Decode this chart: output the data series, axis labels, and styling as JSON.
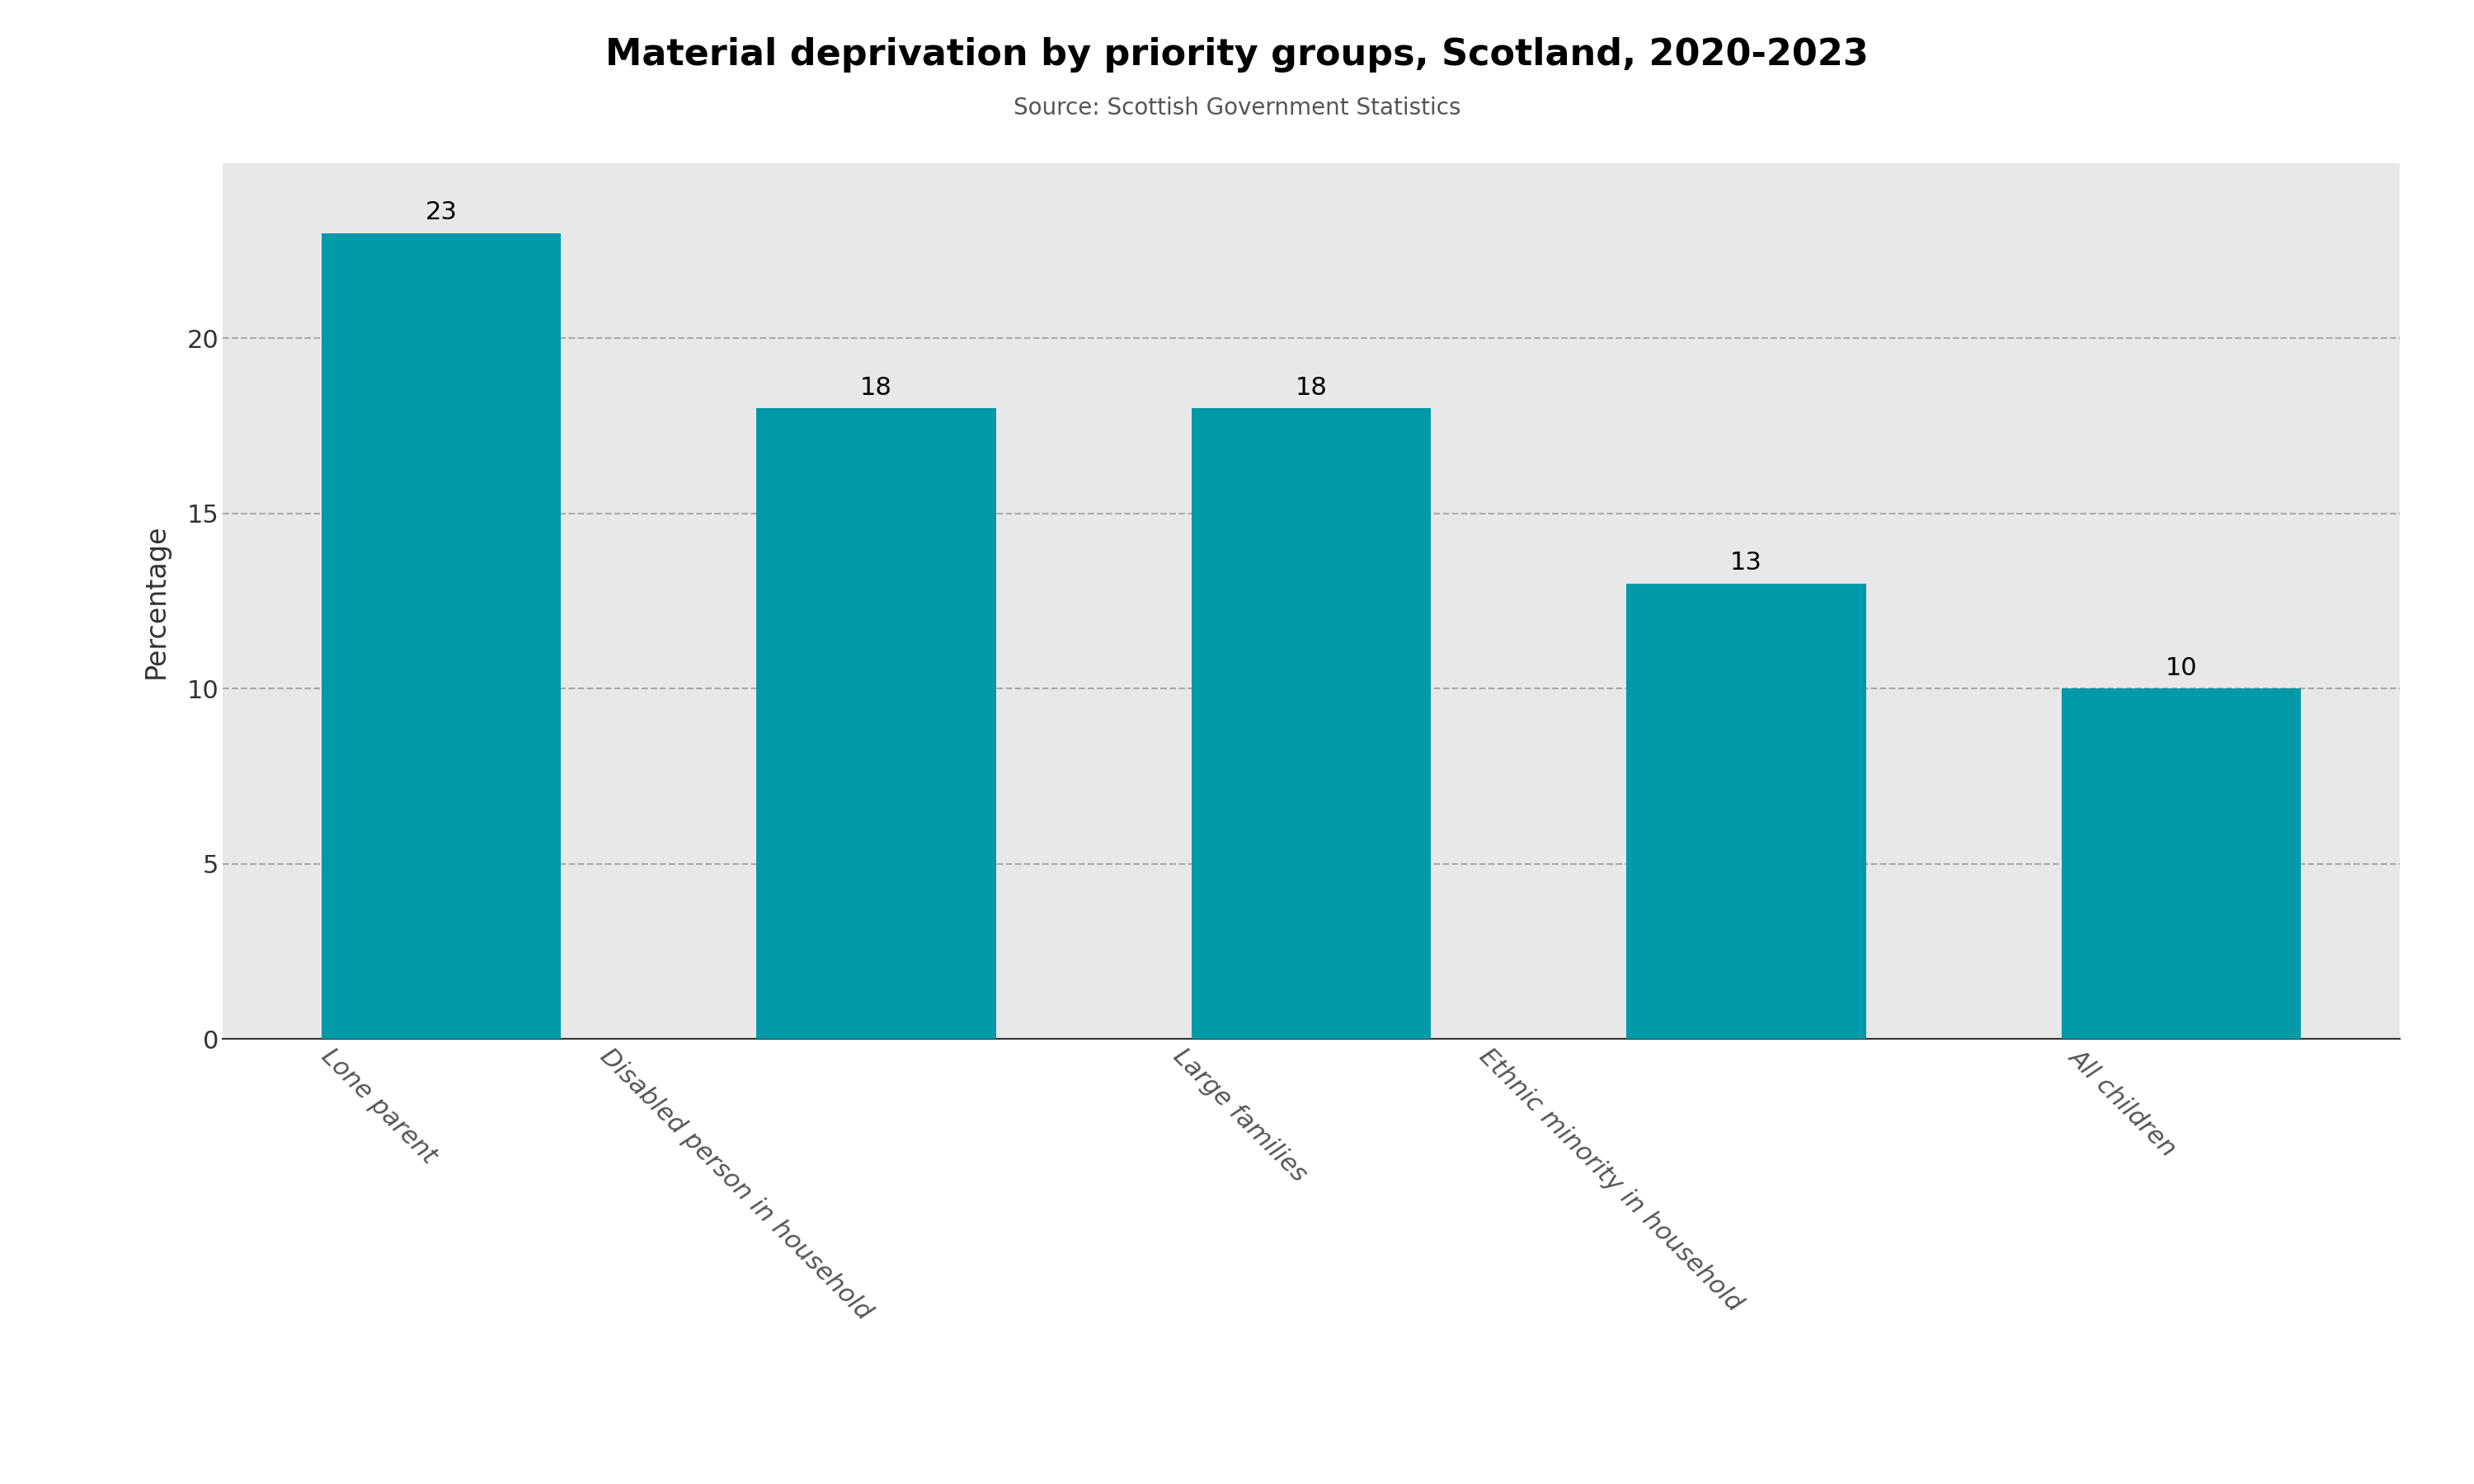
{
  "title": "Material deprivation by priority groups, Scotland, 2020-2023",
  "subtitle": "Source: Scottish Government Statistics",
  "categories": [
    "Lone parent",
    "Disabled person in household",
    "Large families",
    "Ethnic minority in household",
    "All children"
  ],
  "values": [
    23,
    18,
    18,
    13,
    10
  ],
  "bar_color": "#0099A8",
  "ylabel": "Percentage",
  "ylim": [
    0,
    25
  ],
  "yticks": [
    0,
    5,
    10,
    15,
    20
  ],
  "background_color": "#E8E8E8",
  "outer_background": "#FFFFFF",
  "title_fontsize": 32,
  "subtitle_fontsize": 20,
  "ylabel_fontsize": 24,
  "tick_fontsize": 22,
  "bar_label_fontsize": 22,
  "xtick_rotation": -45,
  "grid_color": "#AAAAAA",
  "grid_linestyle": "--",
  "grid_linewidth": 1.5,
  "bar_width": 0.55
}
